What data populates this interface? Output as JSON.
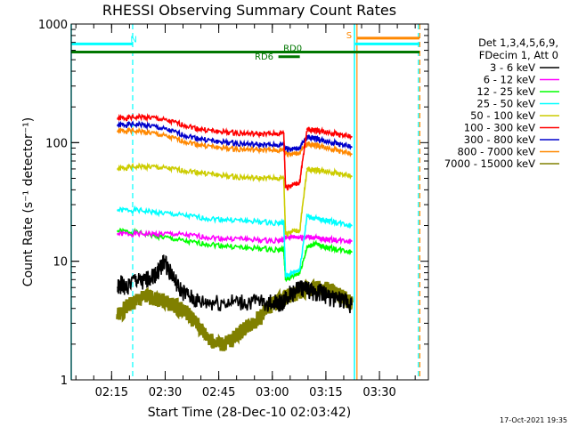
{
  "chart_data": {
    "type": "line",
    "title": "RHESSI Observing Summary Count Rates",
    "xlabel": "Start Time (28-Dec-10 02:03:42)",
    "ylabel": "Count Rate (s⁻¹ detector⁻¹)",
    "x_unit": "minutes since 02:03:42",
    "xlim": [
      0,
      100
    ],
    "ylim": [
      1,
      1000
    ],
    "yscale": "log",
    "x_tick_labels": [
      "02:15",
      "02:30",
      "02:45",
      "03:00",
      "03:15",
      "03:30"
    ],
    "x_tick_positions": [
      11.3,
      26.3,
      41.3,
      56.3,
      71.3,
      86.3
    ],
    "y_tick_labels": [
      "1",
      "10",
      "100",
      "1000"
    ],
    "y_tick_values": [
      1,
      10,
      100,
      1000
    ],
    "legend_header": [
      "Det 1,3,4,5,6,9,",
      "FDecim 1, Att 0"
    ],
    "legend_placement": "right",
    "series": [
      {
        "name": "3 - 6 keV",
        "color": "#000000",
        "x": [
          13,
          14,
          15,
          18,
          20,
          22,
          24,
          25,
          26,
          28,
          30,
          33,
          36,
          40,
          45,
          50,
          55,
          58,
          59.5,
          60,
          62,
          64,
          66,
          68,
          70,
          72,
          75,
          77,
          78.5
        ],
        "y": [
          6,
          6.5,
          6,
          7,
          6.5,
          7.5,
          8,
          9,
          10,
          8,
          6,
          5,
          4.5,
          4.5,
          4.5,
          4.5,
          4.5,
          4.5,
          4.5,
          5,
          5.5,
          6,
          5.8,
          5.5,
          5.5,
          5,
          4.8,
          4.5,
          4.3
        ]
      },
      {
        "name": "6 - 12 keV",
        "color": "#ff00ff",
        "x": [
          13,
          18,
          23,
          28,
          33,
          38,
          43,
          48,
          53,
          58,
          59.5,
          60,
          62,
          64,
          66,
          68,
          70,
          72,
          75,
          78.5
        ],
        "y": [
          17,
          17,
          17,
          17,
          16.5,
          16,
          15.5,
          15.5,
          15,
          15,
          15,
          16,
          16,
          16,
          16,
          15.8,
          15.5,
          15.3,
          15,
          14.8
        ]
      },
      {
        "name": "12 - 25 keV",
        "color": "#00ff00",
        "x": [
          13,
          18,
          23,
          28,
          33,
          38,
          43,
          48,
          53,
          58,
          59.5,
          60,
          62,
          64,
          66,
          68,
          70,
          72,
          75,
          78.5
        ],
        "y": [
          18,
          17.5,
          16.5,
          15.5,
          14.5,
          14,
          13.5,
          13,
          12.8,
          12.5,
          12.5,
          7,
          7.5,
          8,
          13,
          14,
          13.5,
          13,
          12.5,
          12
        ]
      },
      {
        "name": "25 - 50 keV",
        "color": "#00ffff",
        "x": [
          13,
          18,
          23,
          28,
          33,
          38,
          43,
          48,
          53,
          58,
          59.5,
          60,
          62,
          64,
          66,
          68,
          70,
          72,
          75,
          78.5
        ],
        "y": [
          27,
          27,
          26,
          25,
          24,
          23,
          22.5,
          22,
          21.5,
          21,
          21,
          7.5,
          8,
          8.5,
          24,
          23,
          22.5,
          22,
          21,
          20
        ]
      },
      {
        "name": "50 - 100 keV",
        "color": "#cccc00",
        "x": [
          13,
          16,
          20,
          24,
          28,
          32,
          36,
          40,
          44,
          48,
          52,
          56,
          59.5,
          60,
          62,
          64,
          66,
          68,
          70,
          72,
          75,
          78.5
        ],
        "y": [
          60,
          62,
          63,
          62,
          60,
          58,
          56,
          54,
          52,
          51,
          50,
          50,
          50,
          17,
          18,
          18,
          60,
          59,
          58,
          57,
          55,
          52
        ]
      },
      {
        "name": "100 - 300 keV",
        "color": "#ff0000",
        "x": [
          13,
          16,
          20,
          24,
          28,
          32,
          36,
          40,
          44,
          48,
          52,
          56,
          59.5,
          60,
          62,
          64,
          66,
          68,
          70,
          72,
          75,
          78.5
        ],
        "y": [
          160,
          162,
          165,
          160,
          150,
          140,
          130,
          125,
          122,
          120,
          118,
          118,
          120,
          42,
          44,
          46,
          130,
          128,
          125,
          122,
          118,
          112
        ]
      },
      {
        "name": "300 - 800 keV",
        "color": "#0000cc",
        "x": [
          13,
          16,
          20,
          24,
          28,
          32,
          36,
          40,
          44,
          48,
          52,
          56,
          59.5,
          60,
          62,
          64,
          66,
          68,
          70,
          72,
          75,
          78.5
        ],
        "y": [
          140,
          142,
          142,
          135,
          125,
          115,
          108,
          103,
          100,
          98,
          96,
          95,
          96,
          90,
          88,
          90,
          112,
          110,
          105,
          102,
          98,
          92
        ]
      },
      {
        "name": "800 - 7000 keV",
        "color": "#ff8800",
        "x": [
          13,
          16,
          20,
          24,
          28,
          32,
          36,
          40,
          44,
          48,
          52,
          56,
          59.5,
          60,
          62,
          64,
          66,
          68,
          70,
          72,
          75,
          78.5
        ],
        "y": [
          125,
          126,
          124,
          118,
          110,
          102,
          96,
          92,
          89,
          88,
          87,
          86,
          86,
          82,
          80,
          82,
          98,
          96,
          93,
          90,
          86,
          80
        ]
      },
      {
        "name": "7000 - 15000 keV",
        "color": "#808000",
        "x": [
          13,
          15,
          17,
          19,
          21,
          23,
          25,
          27,
          29,
          31,
          33,
          35,
          37,
          39,
          41,
          43,
          45,
          47,
          49,
          51,
          53,
          55,
          57,
          59,
          60,
          62,
          64,
          66,
          68,
          70,
          72,
          74,
          76,
          78.5
        ],
        "y": [
          3.5,
          4,
          4.5,
          4.8,
          5,
          5,
          4.8,
          4.5,
          4.2,
          4,
          3.5,
          3,
          2.5,
          2.2,
          2,
          2,
          2.2,
          2.5,
          2.8,
          3,
          3.5,
          4,
          4.5,
          4.8,
          5,
          5.3,
          5.5,
          5.8,
          6,
          6,
          5.8,
          5.5,
          5,
          4.5
        ]
      }
    ],
    "annotations": [
      {
        "label": "N",
        "color": "#00ffff",
        "x": 17.5,
        "y": 700
      },
      {
        "label": "S",
        "color": "#ff8800",
        "x": 77.8,
        "y": 760
      },
      {
        "label": "RD0",
        "color": "#007700",
        "x": 62,
        "y": 590
      },
      {
        "label": "RD6",
        "color": "#007700",
        "x": 54,
        "y": 500
      }
    ],
    "events": {
      "night_bars": [
        {
          "x0": 0,
          "x1": 17.2,
          "y": 680
        },
        {
          "x0": 79.5,
          "x1": 97.5,
          "y": 680
        }
      ],
      "saa_bar": {
        "x0": 80,
        "x1": 97.5,
        "y": 760
      },
      "green_bar": {
        "x0": 0,
        "x1": 97.5,
        "y": 580
      },
      "rd6_bar": {
        "x0": 58,
        "x1": 64,
        "y": 530
      },
      "cyan_solid": [
        0,
        79.3
      ],
      "cyan_dashed": [
        17.2,
        97.2
      ],
      "orange_solid": [
        80
      ],
      "orange_dashed": [
        97.6
      ]
    }
  },
  "footer_timestamp": "17-Oct-2021 19:35"
}
